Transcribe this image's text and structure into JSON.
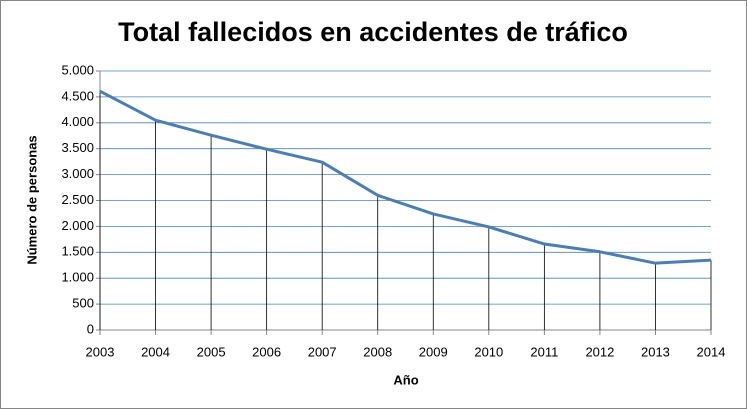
{
  "chart_data": {
    "type": "line",
    "title": "Total fallecidos en accidentes de tráfico",
    "x_label": "Año",
    "y_label": "Número de personas",
    "categories": [
      "2003",
      "2004",
      "2005",
      "2006",
      "2007",
      "2008",
      "2009",
      "2010",
      "2011",
      "2012",
      "2013",
      "2014"
    ],
    "series": [
      {
        "name": "Total fallecidos",
        "color": "#4a7ebb",
        "values": [
          4610,
          4050,
          3760,
          3490,
          3240,
          2600,
          2240,
          1990,
          1660,
          1510,
          1290,
          1350
        ]
      }
    ],
    "ylim": [
      0,
      5000
    ],
    "yticks": [
      0,
      500,
      {
        "value": 1000,
        "label": "1.000"
      },
      {
        "value": 1500,
        "label": "1.500"
      },
      {
        "value": 2000,
        "label": "2.000"
      },
      {
        "value": 2500,
        "label": "2.500"
      },
      {
        "value": 3000,
        "label": "3.000"
      },
      {
        "value": 3500,
        "label": "3.500"
      },
      {
        "value": 4000,
        "label": "4.000"
      },
      {
        "value": 4500,
        "label": "4.500"
      },
      {
        "value": 5000,
        "label": "5.000"
      }
    ],
    "grid": true,
    "drop_lines": true
  }
}
